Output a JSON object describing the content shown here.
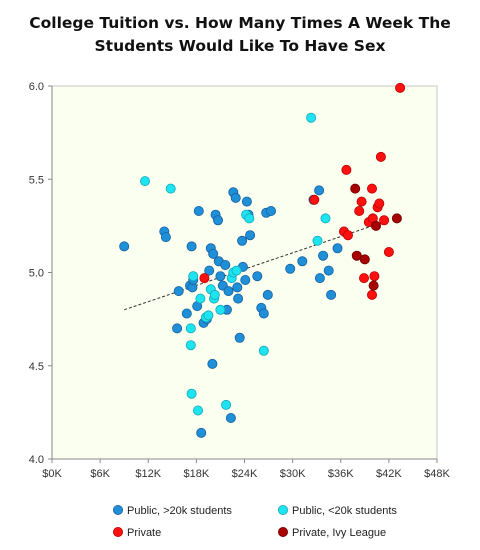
{
  "chart_data": {
    "type": "scatter",
    "title_line1": "College Tuition vs. How Many Times A Week The",
    "title_line2": "Students Would Like To Have Sex",
    "xlabel": "",
    "ylabel": "",
    "xlim": [
      0,
      48000
    ],
    "ylim": [
      4.0,
      6.0
    ],
    "x_ticks": [
      0,
      6000,
      12000,
      18000,
      24000,
      30000,
      36000,
      42000,
      48000
    ],
    "x_tick_labels": [
      "$0K",
      "$6K",
      "$12K",
      "$18K",
      "$24K",
      "$30K",
      "$36K",
      "$42K",
      "$48K"
    ],
    "y_ticks": [
      4.0,
      4.5,
      5.0,
      5.5,
      6.0
    ],
    "y_tick_labels": [
      "4.0",
      "4.5",
      "5.0",
      "5.5",
      "6.0"
    ],
    "grid": false,
    "plot_background": "#fafff0",
    "legend_position": "bottom",
    "trendline": {
      "style": "dashed",
      "color": "#333333",
      "x": [
        9000,
        42000
      ],
      "y": [
        4.8,
        5.28
      ]
    },
    "series": [
      {
        "name": "Public, >20k students",
        "color": "#1f8fd8",
        "stroke": "#1760a0",
        "points": [
          [
            9000,
            5.14
          ],
          [
            14000,
            5.22
          ],
          [
            14200,
            5.19
          ],
          [
            15800,
            4.9
          ],
          [
            15600,
            4.7
          ],
          [
            16800,
            4.78
          ],
          [
            17200,
            4.93
          ],
          [
            17400,
            5.14
          ],
          [
            17500,
            4.92
          ],
          [
            17600,
            4.96
          ],
          [
            18100,
            4.82
          ],
          [
            18300,
            5.33
          ],
          [
            18600,
            4.14
          ],
          [
            18900,
            4.73
          ],
          [
            19300,
            4.75
          ],
          [
            19600,
            5.01
          ],
          [
            19800,
            5.13
          ],
          [
            20000,
            4.51
          ],
          [
            20100,
            5.1
          ],
          [
            20400,
            5.31
          ],
          [
            20700,
            5.28
          ],
          [
            20800,
            5.06
          ],
          [
            21000,
            4.98
          ],
          [
            21300,
            4.93
          ],
          [
            21600,
            5.04
          ],
          [
            21800,
            4.8
          ],
          [
            22000,
            4.9
          ],
          [
            22300,
            4.22
          ],
          [
            22600,
            5.43
          ],
          [
            22900,
            5.4
          ],
          [
            23100,
            4.92
          ],
          [
            23200,
            4.86
          ],
          [
            23400,
            4.65
          ],
          [
            23700,
            5.17
          ],
          [
            23800,
            5.03
          ],
          [
            24100,
            4.96
          ],
          [
            24300,
            5.38
          ],
          [
            24500,
            5.31
          ],
          [
            24700,
            5.2
          ],
          [
            25600,
            4.98
          ],
          [
            26100,
            4.81
          ],
          [
            26400,
            4.78
          ],
          [
            26700,
            5.32
          ],
          [
            26900,
            4.88
          ],
          [
            27300,
            5.33
          ],
          [
            29700,
            5.02
          ],
          [
            31200,
            5.06
          ],
          [
            32600,
            5.39
          ],
          [
            33300,
            5.44
          ],
          [
            33400,
            4.97
          ],
          [
            33800,
            5.09
          ],
          [
            34500,
            5.01
          ],
          [
            34800,
            4.88
          ],
          [
            35600,
            5.13
          ]
        ]
      },
      {
        "name": "Public, <20k students",
        "color": "#1ee3f0",
        "stroke": "#16a8b8",
        "points": [
          [
            11600,
            5.49
          ],
          [
            14800,
            5.45
          ],
          [
            17300,
            4.61
          ],
          [
            17300,
            4.7
          ],
          [
            17400,
            4.35
          ],
          [
            17600,
            4.98
          ],
          [
            18200,
            4.26
          ],
          [
            18500,
            4.86
          ],
          [
            19200,
            4.76
          ],
          [
            19500,
            4.77
          ],
          [
            19800,
            4.91
          ],
          [
            20200,
            4.86
          ],
          [
            20300,
            4.88
          ],
          [
            21000,
            4.8
          ],
          [
            21700,
            4.29
          ],
          [
            22400,
            4.97
          ],
          [
            22600,
            5.0
          ],
          [
            23000,
            5.01
          ],
          [
            24200,
            5.31
          ],
          [
            24600,
            5.29
          ],
          [
            26400,
            4.58
          ],
          [
            32300,
            5.83
          ],
          [
            33100,
            5.17
          ],
          [
            34100,
            5.29
          ]
        ]
      },
      {
        "name": "Private",
        "color": "#ff1010",
        "stroke": "#b80000",
        "points": [
          [
            19000,
            4.97
          ],
          [
            32700,
            5.39
          ],
          [
            36400,
            5.22
          ],
          [
            36700,
            5.55
          ],
          [
            36900,
            5.2
          ],
          [
            38300,
            5.33
          ],
          [
            38600,
            5.38
          ],
          [
            38900,
            4.97
          ],
          [
            39500,
            5.27
          ],
          [
            39900,
            5.45
          ],
          [
            39900,
            4.88
          ],
          [
            40000,
            5.29
          ],
          [
            40200,
            4.98
          ],
          [
            40600,
            5.35
          ],
          [
            40800,
            5.37
          ],
          [
            41000,
            5.62
          ],
          [
            41400,
            5.28
          ],
          [
            42000,
            5.11
          ],
          [
            43400,
            5.99
          ]
        ]
      },
      {
        "name": "Private, Ivy League",
        "color": "#a80000",
        "stroke": "#6e0000",
        "points": [
          [
            37800,
            5.45
          ],
          [
            38000,
            5.09
          ],
          [
            39000,
            5.07
          ],
          [
            40100,
            4.93
          ],
          [
            40400,
            5.25
          ],
          [
            43000,
            5.29
          ]
        ]
      }
    ]
  }
}
